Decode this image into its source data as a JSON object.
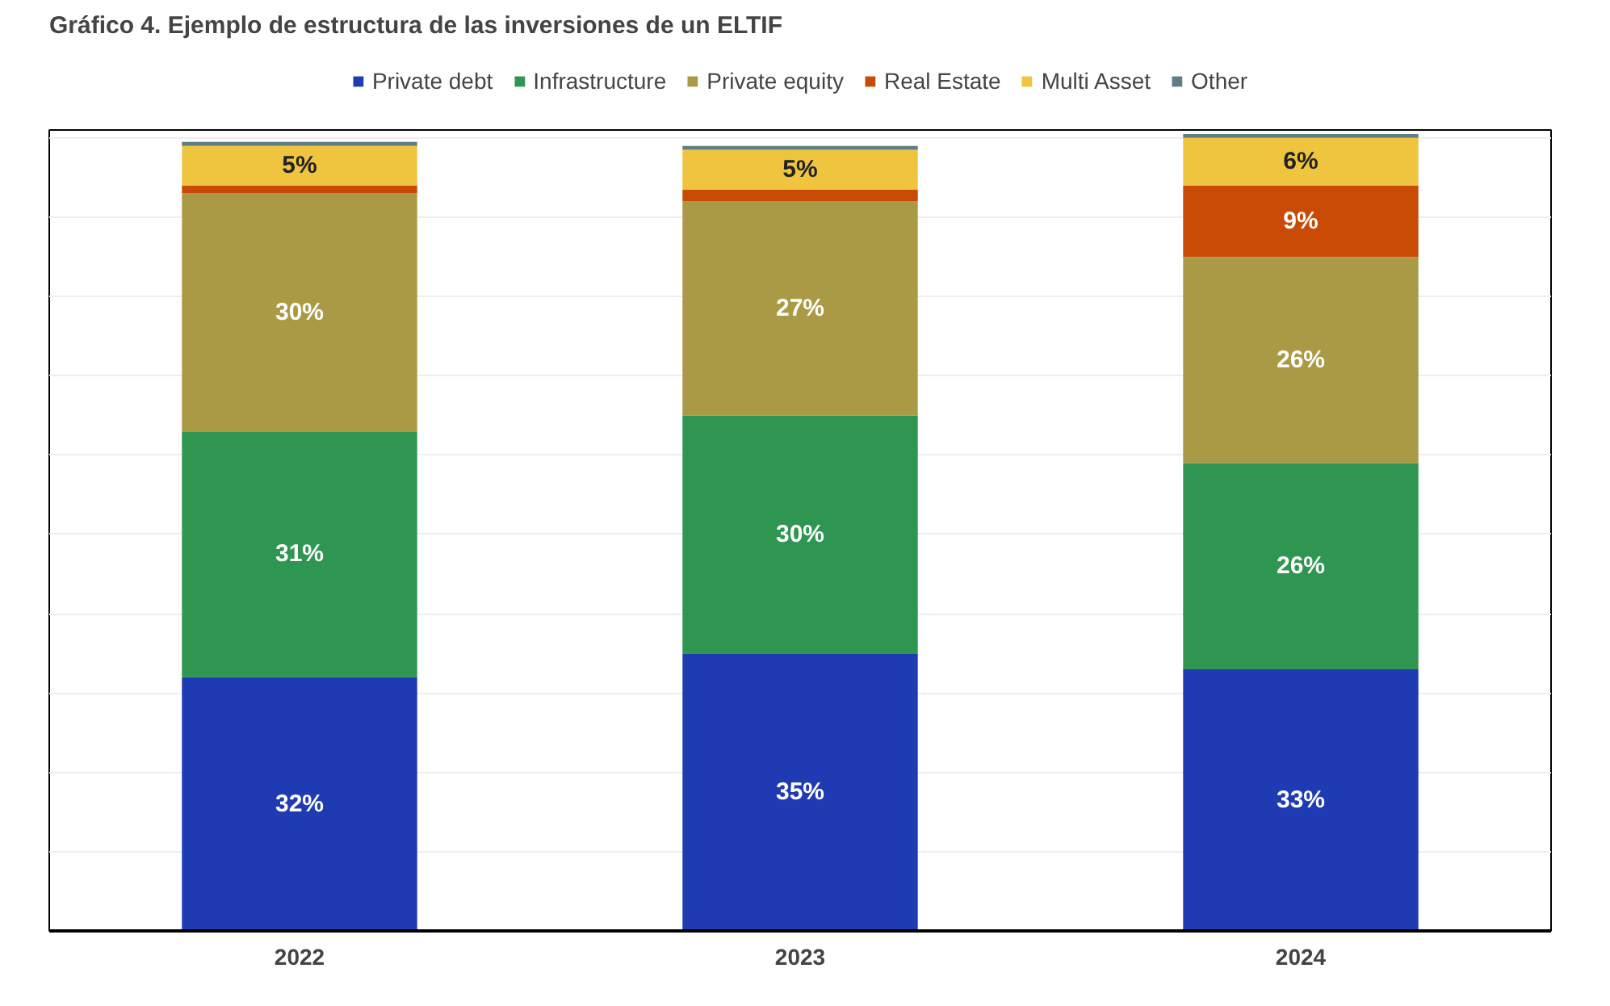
{
  "chart_data": {
    "type": "bar",
    "title": "Gráfico 4. Ejemplo de estructura de las inversiones de un ELTIF",
    "categories": [
      "2022",
      "2023",
      "2024"
    ],
    "stacked": true,
    "legend": "top",
    "grid": "y",
    "tick_labels": "x",
    "ylim": [
      0,
      101
    ],
    "yticks": [
      {
        "value": 0,
        "label": null
      },
      {
        "value": 10,
        "label": null
      },
      {
        "value": 20,
        "label": null
      },
      {
        "value": 30,
        "label": null
      },
      {
        "value": 40,
        "label": null
      },
      {
        "value": 50,
        "label": null
      },
      {
        "value": 60,
        "label": null
      },
      {
        "value": 70,
        "label": null
      },
      {
        "value": 80,
        "label": null
      },
      {
        "value": 90,
        "label": null
      },
      {
        "value": 100,
        "label": null
      }
    ],
    "series": [
      {
        "name": "Private debt",
        "color": "#1f3bb3",
        "values": [
          32,
          35,
          33
        ],
        "value_labels": [
          "32%",
          "35%",
          "33%"
        ]
      },
      {
        "name": "Infrastructure",
        "color": "#2e9651",
        "values": [
          31,
          30,
          26
        ],
        "value_labels": [
          "31%",
          "30%",
          "26%"
        ]
      },
      {
        "name": "Private equity",
        "color": "#ab9a45",
        "values": [
          30,
          27,
          26
        ],
        "value_labels": [
          "30%",
          "27%",
          "26%"
        ]
      },
      {
        "name": "Real Estate",
        "color": "#c94a05",
        "values": [
          1,
          1.5,
          9
        ],
        "value_labels": [
          null,
          null,
          "9%"
        ]
      },
      {
        "name": "Multi Asset",
        "color": "#efc43f",
        "values": [
          5,
          5,
          6
        ],
        "value_labels": [
          "5%",
          "5%",
          "6%"
        ]
      },
      {
        "name": "Other",
        "color": "#5f7f84",
        "values": [
          0.5,
          0.5,
          0.5
        ],
        "value_labels": [
          null,
          null,
          null
        ]
      }
    ]
  }
}
